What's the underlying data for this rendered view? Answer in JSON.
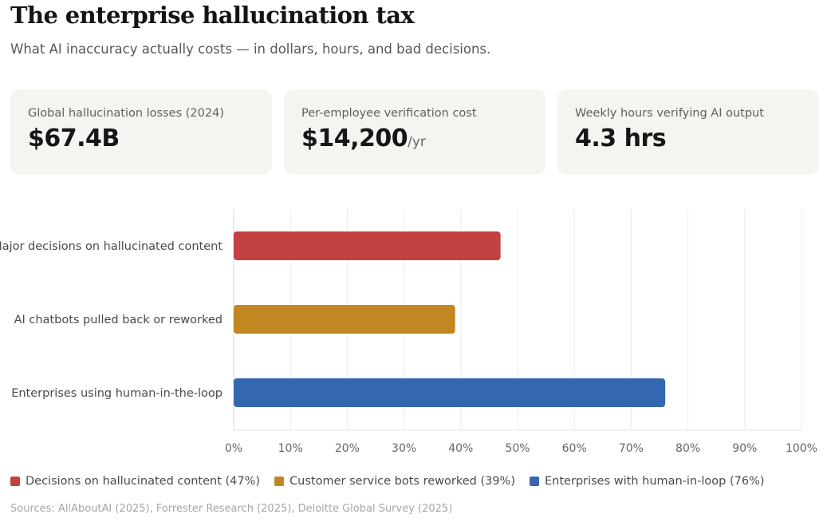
{
  "header": {
    "title": "The enterprise hallucination tax",
    "subtitle": "What AI inaccuracy actually costs — in dollars, hours, and bad decisions."
  },
  "stats": [
    {
      "label": "Global hallucination losses (2024)",
      "value": "$67.4B",
      "unit": ""
    },
    {
      "label": "Per-employee verification cost",
      "value": "$14,200",
      "unit": "/yr"
    },
    {
      "label": "Weekly hours verifying AI output",
      "value": "4.3 hrs",
      "unit": ""
    }
  ],
  "chart_data": {
    "type": "bar",
    "orientation": "horizontal",
    "categories": [
      "Major decisions on hallucinated content",
      "AI chatbots pulled back or reworked",
      "Enterprises using human-in-the-loop"
    ],
    "values": [
      47,
      39,
      76
    ],
    "colors": [
      "#c44141",
      "#c38722",
      "#3467b0"
    ],
    "xlim": [
      0,
      100
    ],
    "ticks": [
      0,
      10,
      20,
      30,
      40,
      50,
      60,
      70,
      80,
      90,
      100
    ],
    "tick_suffix": "%",
    "grid": true
  },
  "legend": [
    {
      "label": "Decisions on hallucinated content (47%)",
      "color": "#c44141"
    },
    {
      "label": "Customer service bots reworked (39%)",
      "color": "#c38722"
    },
    {
      "label": "Enterprises with human-in-loop (76%)",
      "color": "#3467b0"
    }
  ],
  "footer": {
    "sources": "Sources: AllAboutAI (2025), Forrester Research (2025), Deloitte Global Survey (2025)"
  }
}
